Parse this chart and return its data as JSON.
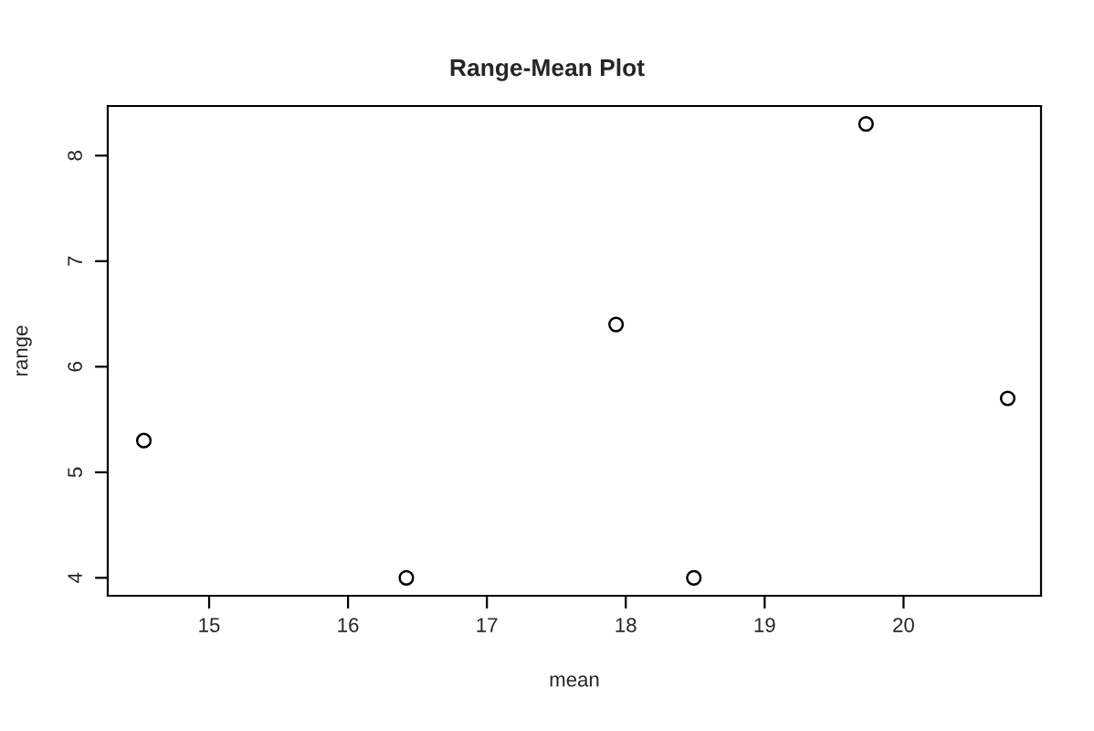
{
  "chart_data": {
    "type": "scatter",
    "title": "Range-Mean Plot",
    "xlabel": "mean",
    "ylabel": "range",
    "x": [
      14.53,
      16.42,
      17.93,
      18.49,
      19.73,
      20.75
    ],
    "values": [
      5.3,
      4.0,
      6.4,
      4.0,
      8.3,
      5.7
    ],
    "color": "#000000",
    "marker": "circle",
    "xlim": [
      14.27,
      20.99
    ],
    "ylim": [
      3.83,
      8.47
    ],
    "xticks": [
      15,
      16,
      17,
      18,
      19,
      20
    ],
    "yticks": [
      4,
      5,
      6,
      7,
      8
    ],
    "grid": false,
    "legend": false
  }
}
